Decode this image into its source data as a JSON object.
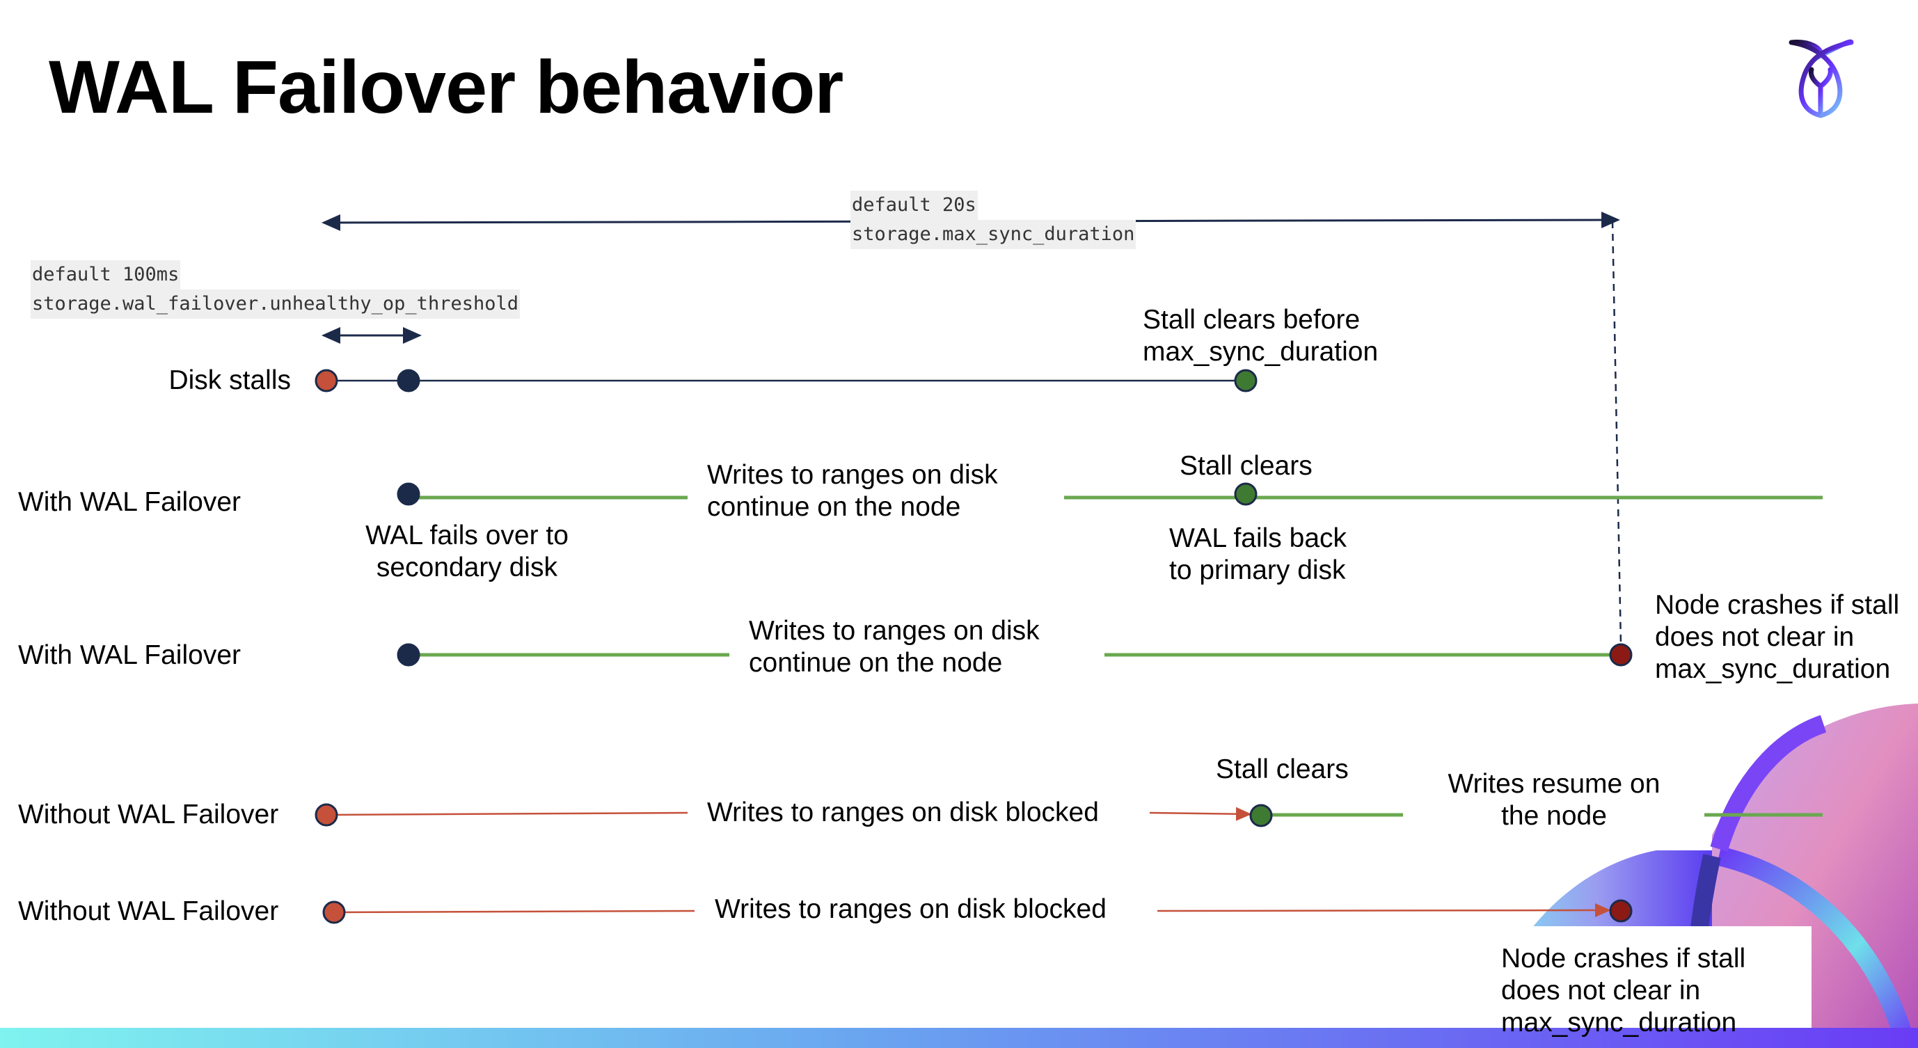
{
  "title": "WAL Failover behavior",
  "logo": {
    "icon": "cockroach-logo-icon",
    "colors": [
      "#190f33",
      "#6933ff",
      "#7ef0f5"
    ]
  },
  "settings": {
    "max_sync": {
      "default": "default 20s",
      "name": "storage.max_sync_duration"
    },
    "threshold": {
      "default": "default 100ms",
      "name": "storage.wal_failover.unhealthy_op_threshold"
    }
  },
  "rows": [
    {
      "label": "Disk stalls",
      "note": [
        "Stall clears before",
        "max_sync_duration"
      ]
    },
    {
      "label": "With WAL Failover",
      "middle": [
        "Writes to ranges on disk",
        "continue on the node"
      ],
      "left_note": [
        "WAL fails over to",
        "secondary disk"
      ],
      "top_note": "Stall clears",
      "bottom_note": [
        "WAL fails  back",
        "to primary disk"
      ]
    },
    {
      "label": "With WAL Failover",
      "middle": [
        "Writes to ranges on disk",
        "continue on the node"
      ],
      "right_note": [
        "Node crashes if stall",
        "does not clear in",
        "max_sync_duration"
      ]
    },
    {
      "label": "Without WAL Failover",
      "middle": "Writes to ranges on disk  blocked",
      "top_note": "Stall clears",
      "right_note": [
        "Writes resume on",
        "the node"
      ]
    },
    {
      "label": "Without WAL Failover",
      "middle": "Writes to ranges on disk  blocked",
      "bottom_note": [
        "Node crashes if stall",
        "does not clear in",
        "max_sync_duration"
      ]
    }
  ],
  "colors": {
    "navy": "#1c2a4a",
    "green": "#6aa84f",
    "green_dot": "#3f7a32",
    "red": "#c5513a",
    "dark_red": "#8b1a14"
  }
}
